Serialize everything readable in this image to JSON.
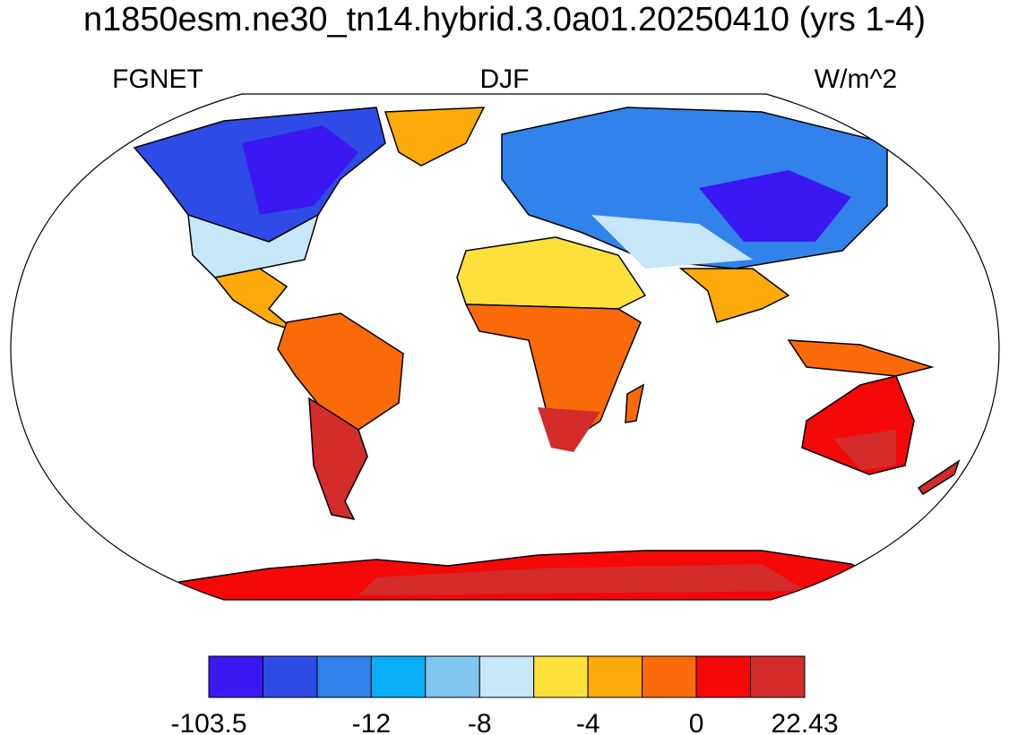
{
  "header": {
    "title": "n1850esm.ne30_tn14.hybrid.3.0a01.20250410 (yrs 1-4)",
    "left": "FGNET",
    "center": "DJF",
    "right": "W/m^2"
  },
  "colorbar": {
    "colors": [
      "#3b18f2",
      "#2f4be6",
      "#3182ea",
      "#09aef7",
      "#7fc7ee",
      "#c7e6f7",
      "#fde03a",
      "#fdaa0a",
      "#fb6a08",
      "#f40808",
      "#d42b2b"
    ],
    "labels": [
      "-103.5",
      "-12",
      "-8",
      "-4",
      "0",
      "22.43"
    ]
  }
}
